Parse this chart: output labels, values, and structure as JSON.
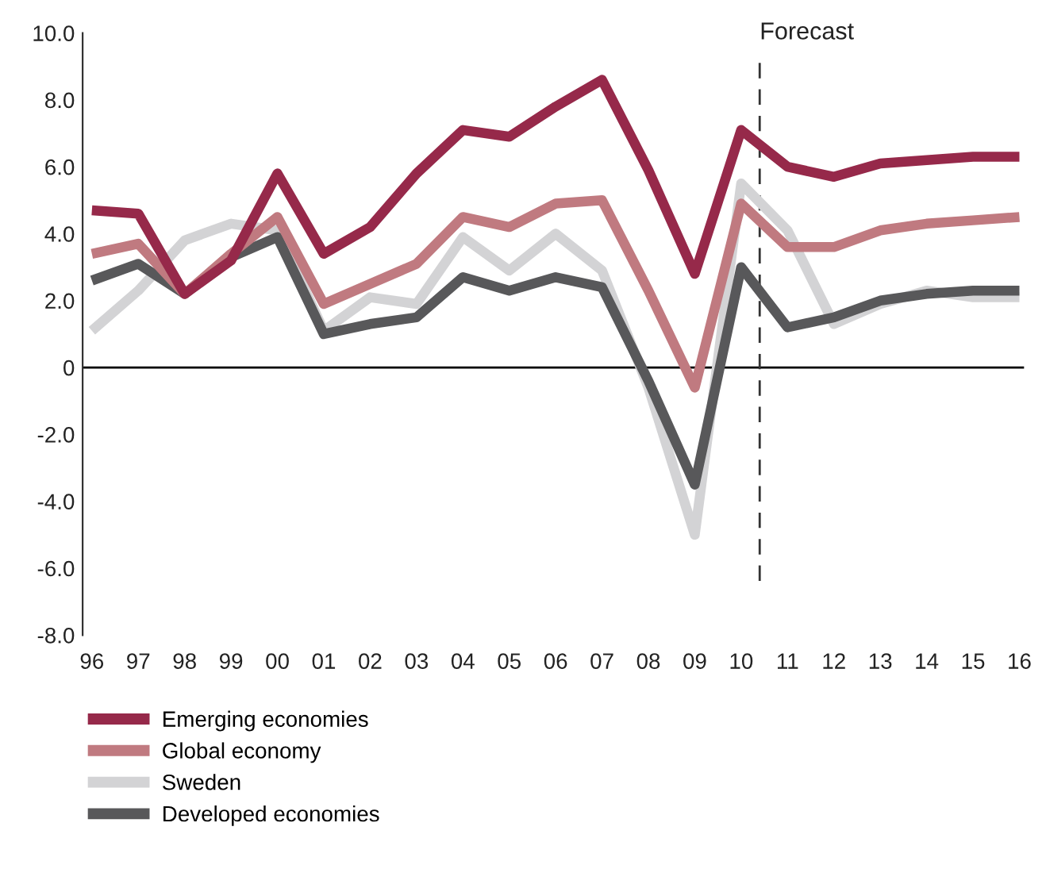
{
  "chart_data": {
    "type": "line",
    "x": [
      1996,
      1997,
      1998,
      1999,
      2000,
      2001,
      2002,
      2003,
      2004,
      2005,
      2006,
      2007,
      2008,
      2009,
      2010,
      2011,
      2012,
      2013,
      2014,
      2015,
      2016
    ],
    "xticks": [
      {
        "value": 1996,
        "label": "96"
      },
      {
        "value": 1997,
        "label": "97"
      },
      {
        "value": 1998,
        "label": "98"
      },
      {
        "value": 1999,
        "label": "99"
      },
      {
        "value": 2000,
        "label": "00"
      },
      {
        "value": 2001,
        "label": "01"
      },
      {
        "value": 2002,
        "label": "02"
      },
      {
        "value": 2003,
        "label": "03"
      },
      {
        "value": 2004,
        "label": "04"
      },
      {
        "value": 2005,
        "label": "05"
      },
      {
        "value": 2006,
        "label": "06"
      },
      {
        "value": 2007,
        "label": "07"
      },
      {
        "value": 2008,
        "label": "08"
      },
      {
        "value": 2009,
        "label": "09"
      },
      {
        "value": 2010,
        "label": "10"
      },
      {
        "value": 2011,
        "label": "11"
      },
      {
        "value": 2012,
        "label": "12"
      },
      {
        "value": 2013,
        "label": "13"
      },
      {
        "value": 2014,
        "label": "14"
      },
      {
        "value": 2015,
        "label": "15"
      },
      {
        "value": 2016,
        "label": "16"
      }
    ],
    "xlim": [
      1995.8,
      2016.1
    ],
    "ylim": [
      -8,
      10
    ],
    "yticks": [
      {
        "value": -8,
        "label": "-8.0"
      },
      {
        "value": -6,
        "label": "-6.0"
      },
      {
        "value": -4,
        "label": "-4.0"
      },
      {
        "value": -2,
        "label": "-2.0"
      },
      0,
      {
        "value": 2,
        "label": "2.0"
      },
      {
        "value": 4,
        "label": "4.0"
      },
      {
        "value": 6,
        "label": "6.0"
      },
      {
        "value": 8,
        "label": "8.0"
      },
      {
        "value": 10,
        "label": "10.0"
      }
    ],
    "grid": false,
    "legend": "bottom left",
    "line_style": "solid",
    "ref_lines": [
      {
        "axis": "y",
        "value": 0,
        "color": "#000000",
        "line_style": "solid"
      },
      {
        "axis": "x",
        "value": 2010.4,
        "label": "Forecast",
        "color": "#333333",
        "line_style": "dashed"
      }
    ],
    "series": [
      {
        "name": "Sweden",
        "color": "#d3d3d5",
        "values": [
          1.1,
          2.3,
          3.8,
          4.3,
          4.1,
          1.1,
          2.1,
          1.9,
          3.9,
          2.9,
          4.0,
          2.9,
          -0.6,
          -5.0,
          5.5,
          4.1,
          1.3,
          1.9,
          2.3,
          2.1,
          2.1
        ]
      },
      {
        "name": "Developed economies",
        "color": "#58585a",
        "values": [
          2.6,
          3.1,
          2.2,
          3.3,
          3.9,
          1.0,
          1.3,
          1.5,
          2.7,
          2.3,
          2.7,
          2.4,
          -0.4,
          -3.5,
          3.0,
          1.2,
          1.5,
          2.0,
          2.2,
          2.3,
          2.3
        ]
      },
      {
        "name": "Global economy",
        "color": "#c07a80",
        "values": [
          3.4,
          3.7,
          2.2,
          3.4,
          4.5,
          1.9,
          2.5,
          3.1,
          4.5,
          4.2,
          4.9,
          5.0,
          2.3,
          -0.6,
          4.9,
          3.6,
          3.6,
          4.1,
          4.3,
          4.4,
          4.5
        ]
      },
      {
        "name": "Emerging economies",
        "color": "#96294a",
        "values": [
          4.7,
          4.6,
          2.2,
          3.2,
          5.8,
          3.4,
          4.2,
          5.8,
          7.1,
          6.9,
          7.8,
          8.6,
          5.9,
          2.8,
          7.1,
          6.0,
          5.7,
          6.1,
          6.2,
          6.3,
          6.3
        ]
      }
    ]
  }
}
